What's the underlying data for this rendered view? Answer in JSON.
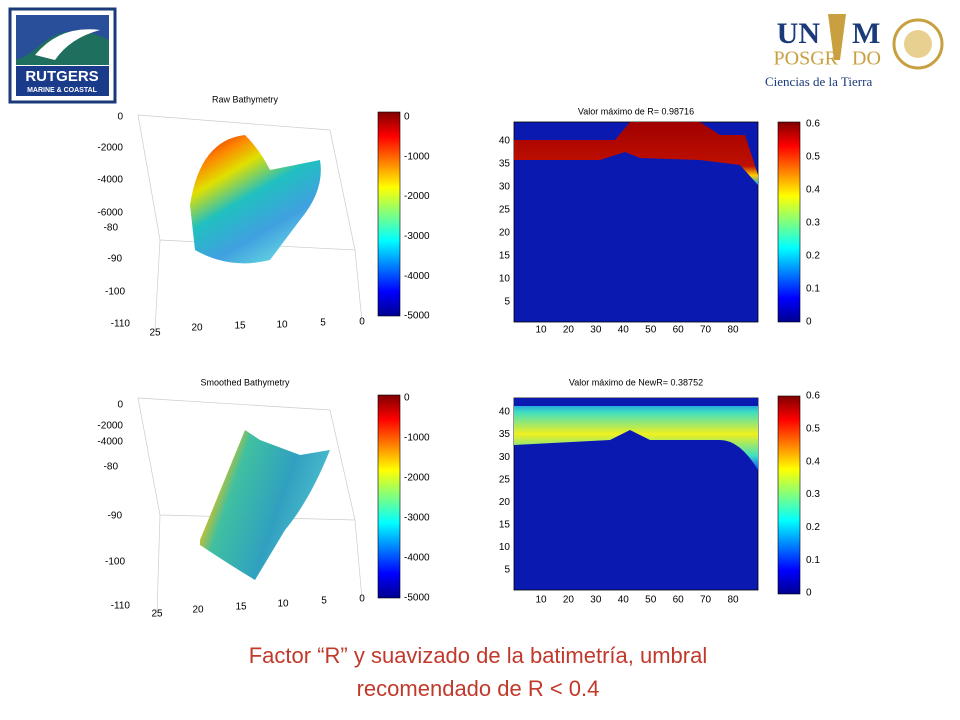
{
  "logos": {
    "rutgers": {
      "name": "RUTGERS",
      "subtitle": "MARINE & COASTAL"
    },
    "unam": {
      "name_left": "UN",
      "name_right": "M",
      "program_left": "POSGR",
      "program_right": "DO",
      "subtitle": "Ciencias de la Tierra"
    }
  },
  "panels": [
    {
      "title": "Raw Bathymetry",
      "z_ticks": [
        "0",
        "-2000",
        "-4000",
        "-6000"
      ],
      "y_ticks": [
        "-80",
        "-90",
        "-100",
        "-110"
      ],
      "x_ticks": [
        "25",
        "20",
        "15",
        "10",
        "5",
        "0"
      ],
      "colorbar_ticks": [
        "0",
        "-1000",
        "-2000",
        "-3000",
        "-4000",
        "-5000"
      ]
    },
    {
      "title": "Valor máximo de R= 0.98716",
      "y_ticks": [
        "40",
        "35",
        "30",
        "25",
        "20",
        "15",
        "10",
        "5"
      ],
      "x_ticks": [
        "10",
        "20",
        "30",
        "40",
        "50",
        "60",
        "70",
        "80"
      ],
      "colorbar_ticks": [
        "0.6",
        "0.5",
        "0.4",
        "0.3",
        "0.2",
        "0.1",
        "0"
      ]
    },
    {
      "title": "Smoothed Bathymetry",
      "z_ticks": [
        "0",
        "-2000",
        "-4000"
      ],
      "y_ticks": [
        "-80",
        "-90",
        "-100",
        "-110"
      ],
      "x_ticks": [
        "25",
        "20",
        "15",
        "10",
        "5",
        "0"
      ],
      "colorbar_ticks": [
        "0",
        "-1000",
        "-2000",
        "-3000",
        "-4000",
        "-5000"
      ]
    },
    {
      "title": "Valor máximo de NewR= 0.38752",
      "y_ticks": [
        "40",
        "35",
        "30",
        "25",
        "20",
        "15",
        "10",
        "5"
      ],
      "x_ticks": [
        "10",
        "20",
        "30",
        "40",
        "50",
        "60",
        "70",
        "80"
      ],
      "colorbar_ticks": [
        "0.6",
        "0.5",
        "0.4",
        "0.3",
        "0.2",
        "0.1",
        "0"
      ]
    }
  ],
  "caption": {
    "lines": [
      "Factor “R” y suavizado de la batimetría, umbral",
      "recomendado de R < 0.4"
    ]
  }
}
